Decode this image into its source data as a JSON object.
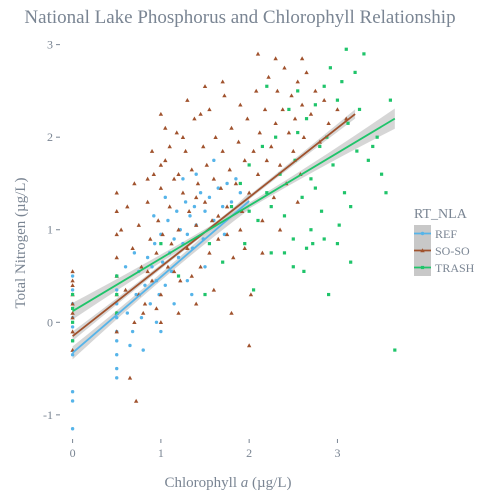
{
  "chart_data": {
    "type": "scatter",
    "title": "National Lake Phosphorus and Chlorophyll Relationship",
    "xlabel_parts": [
      "Chlorophyll ",
      "a",
      " (µg/L)"
    ],
    "ylabel": "Total Nitrogen (µg/L)",
    "xlim": [
      -0.12,
      3.72
    ],
    "ylim": [
      -1.25,
      3.05
    ],
    "x_ticks": [
      0,
      1,
      2,
      3
    ],
    "y_ticks": [
      -1,
      0,
      1,
      2,
      3
    ],
    "grid": false,
    "legend": {
      "title": "RT_NLA",
      "position": "right"
    },
    "colors": {
      "REF": "#56b4e9",
      "SO-SO": "#a0522d",
      "TRASH": "#1fc46a",
      "band": "#c8c8c8"
    },
    "series": [
      {
        "name": "REF",
        "marker": "circle",
        "fit": {
          "x_range": [
            0,
            2.0
          ],
          "intercept": -0.33,
          "slope": 0.82,
          "band": [
            0.07,
            0.04,
            0.09
          ]
        },
        "points": [
          [
            0,
            -1.15
          ],
          [
            0,
            -0.75
          ],
          [
            0,
            -0.85
          ],
          [
            0,
            -0.35
          ],
          [
            0,
            -0.2
          ],
          [
            0,
            0.05
          ],
          [
            0,
            -0.05
          ],
          [
            0,
            0.2
          ],
          [
            0,
            0.35
          ],
          [
            0,
            0.5
          ],
          [
            0.5,
            -0.6
          ],
          [
            0.5,
            -0.5
          ],
          [
            0.5,
            -0.35
          ],
          [
            0.5,
            -0.2
          ],
          [
            0.5,
            -0.1
          ],
          [
            0.5,
            0.05
          ],
          [
            0.5,
            0.2
          ],
          [
            0.5,
            0.35
          ],
          [
            0.5,
            0.5
          ],
          [
            0.62,
            0.1
          ],
          [
            0.68,
            -0.1
          ],
          [
            0.72,
            0.3
          ],
          [
            0.75,
            0.55
          ],
          [
            0.78,
            0.05
          ],
          [
            0.82,
            0.4
          ],
          [
            0.85,
            0.7
          ],
          [
            0.88,
            0.2
          ],
          [
            0.9,
            0.6
          ],
          [
            0.93,
            0.85
          ],
          [
            0.95,
            0.45
          ],
          [
            0.98,
            0.3
          ],
          [
            1.0,
            0.95
          ],
          [
            1.02,
            0.65
          ],
          [
            1.05,
            0.4
          ],
          [
            1.08,
            1.1
          ],
          [
            1.1,
            0.75
          ],
          [
            1.12,
            0.55
          ],
          [
            1.15,
            0.9
          ],
          [
            1.18,
            1.2
          ],
          [
            1.2,
            0.7
          ],
          [
            1.22,
            1.0
          ],
          [
            1.25,
            0.85
          ],
          [
            1.28,
            1.3
          ],
          [
            1.3,
            0.95
          ],
          [
            1.33,
            1.15
          ],
          [
            1.36,
            0.8
          ],
          [
            1.38,
            1.25
          ],
          [
            1.4,
            1.05
          ],
          [
            1.45,
            1.4
          ],
          [
            1.48,
            0.9
          ],
          [
            1.5,
            1.2
          ],
          [
            1.55,
            1.35
          ],
          [
            1.6,
            1.1
          ],
          [
            1.65,
            1.45
          ],
          [
            1.7,
            1.25
          ],
          [
            1.75,
            1.5
          ],
          [
            1.8,
            1.3
          ],
          [
            1.85,
            1.55
          ],
          [
            1.9,
            1.4
          ],
          [
            1.0,
            -0.1
          ],
          [
            0.8,
            -0.3
          ],
          [
            0.95,
            0.0
          ],
          [
            1.15,
            0.2
          ],
          [
            1.3,
            0.45
          ],
          [
            0.7,
            0.75
          ],
          [
            1.05,
            1.35
          ],
          [
            1.25,
            1.55
          ],
          [
            1.4,
            1.6
          ],
          [
            1.6,
            1.75
          ],
          [
            1.5,
            0.6
          ],
          [
            1.72,
            0.95
          ],
          [
            0.6,
            0.6
          ],
          [
            0.65,
            -0.25
          ],
          [
            0.92,
            1.15
          ],
          [
            1.35,
            0.3
          ]
        ]
      },
      {
        "name": "SO-SO",
        "marker": "triangle",
        "fit": {
          "x_range": [
            0,
            3.2
          ],
          "intercept": -0.15,
          "slope": 0.75,
          "band": [
            0.05,
            0.02,
            0.05
          ]
        },
        "points": [
          [
            0,
            -0.3
          ],
          [
            0,
            -0.1
          ],
          [
            0,
            0.05
          ],
          [
            0,
            0.2
          ],
          [
            0,
            0.3
          ],
          [
            0,
            0.45
          ],
          [
            0,
            0.55
          ],
          [
            0,
            0.4
          ],
          [
            0,
            0.1
          ],
          [
            0.5,
            -0.1
          ],
          [
            0.5,
            0.1
          ],
          [
            0.5,
            0.3
          ],
          [
            0.5,
            0.5
          ],
          [
            0.5,
            0.7
          ],
          [
            0.5,
            0.95
          ],
          [
            0.5,
            1.2
          ],
          [
            0.5,
            1.4
          ],
          [
            0.65,
            -0.6
          ],
          [
            0.72,
            -0.85
          ],
          [
            0.6,
            0.35
          ],
          [
            0.68,
            0.8
          ],
          [
            0.75,
            1.05
          ],
          [
            0.78,
            0.6
          ],
          [
            0.82,
            0.2
          ],
          [
            0.85,
            1.3
          ],
          [
            0.88,
            0.9
          ],
          [
            0.9,
            0.45
          ],
          [
            0.92,
            1.6
          ],
          [
            0.95,
            0.75
          ],
          [
            0.97,
            1.1
          ],
          [
            1.0,
            0.3
          ],
          [
            1.0,
            1.45
          ],
          [
            1.02,
            0.95
          ],
          [
            1.05,
            1.75
          ],
          [
            1.08,
            0.6
          ],
          [
            1.1,
            1.25
          ],
          [
            1.12,
            0.85
          ],
          [
            1.15,
            1.55
          ],
          [
            1.18,
            2.05
          ],
          [
            1.2,
            1.0
          ],
          [
            1.22,
            0.45
          ],
          [
            1.25,
            1.4
          ],
          [
            1.28,
            1.85
          ],
          [
            1.3,
            0.8
          ],
          [
            1.32,
            1.2
          ],
          [
            1.35,
            1.65
          ],
          [
            1.38,
            2.2
          ],
          [
            1.4,
            1.05
          ],
          [
            1.42,
            1.5
          ],
          [
            1.45,
            0.6
          ],
          [
            1.48,
            1.9
          ],
          [
            1.5,
            1.3
          ],
          [
            1.52,
            1.7
          ],
          [
            1.55,
            2.3
          ],
          [
            1.58,
            1.1
          ],
          [
            1.6,
            1.55
          ],
          [
            1.62,
            2.0
          ],
          [
            1.65,
            0.9
          ],
          [
            1.68,
            1.45
          ],
          [
            1.7,
            1.85
          ],
          [
            1.72,
            2.45
          ],
          [
            1.75,
            1.25
          ],
          [
            1.78,
            1.65
          ],
          [
            1.8,
            2.1
          ],
          [
            1.82,
            0.7
          ],
          [
            1.85,
            1.5
          ],
          [
            1.88,
            1.95
          ],
          [
            1.9,
            2.35
          ],
          [
            1.92,
            1.2
          ],
          [
            1.95,
            1.75
          ],
          [
            1.98,
            2.2
          ],
          [
            2.0,
            1.4
          ],
          [
            2.02,
            0.3
          ],
          [
            2.05,
            1.85
          ],
          [
            2.08,
            2.5
          ],
          [
            2.1,
            1.6
          ],
          [
            2.12,
            2.05
          ],
          [
            2.15,
            1.1
          ],
          [
            2.18,
            2.3
          ],
          [
            2.2,
            1.75
          ],
          [
            2.22,
            2.65
          ],
          [
            2.25,
            1.9
          ],
          [
            2.28,
            1.35
          ],
          [
            2.3,
            2.15
          ],
          [
            2.32,
            2.5
          ],
          [
            2.35,
            1.7
          ],
          [
            2.38,
            2.3
          ],
          [
            2.4,
            2.75
          ],
          [
            2.42,
            1.5
          ],
          [
            2.45,
            2.05
          ],
          [
            2.48,
            2.45
          ],
          [
            2.5,
            1.85
          ],
          [
            2.52,
            2.2
          ],
          [
            2.55,
            2.6
          ],
          [
            2.58,
            1.6
          ],
          [
            2.6,
            2.35
          ],
          [
            2.62,
            2.0
          ],
          [
            2.65,
            2.7
          ],
          [
            2.7,
            2.25
          ],
          [
            2.75,
            2.5
          ],
          [
            2.8,
            1.95
          ],
          [
            2.85,
            2.4
          ],
          [
            2.9,
            2.15
          ],
          [
            3.0,
            2.3
          ],
          [
            3.1,
            2.2
          ],
          [
            0.7,
            0.0
          ],
          [
            0.8,
            0.1
          ],
          [
            1.0,
            0.0
          ],
          [
            1.2,
            0.1
          ],
          [
            1.4,
            0.2
          ],
          [
            1.6,
            0.35
          ],
          [
            1.8,
            0.1
          ],
          [
            2.0,
            -0.25
          ],
          [
            1.1,
            1.9
          ],
          [
            0.9,
            1.85
          ],
          [
            1.3,
            2.4
          ],
          [
            1.5,
            2.55
          ],
          [
            1.25,
            2.0
          ],
          [
            1.05,
            2.1
          ],
          [
            1.45,
            2.25
          ],
          [
            1.7,
            2.6
          ],
          [
            0.55,
            1.0
          ],
          [
            0.62,
            1.25
          ],
          [
            0.75,
            0.3
          ],
          [
            0.85,
            0.55
          ],
          [
            0.95,
            0.15
          ],
          [
            1.15,
            0.55
          ],
          [
            1.35,
            0.5
          ],
          [
            1.55,
            0.75
          ],
          [
            1.75,
            0.95
          ],
          [
            1.95,
            0.8
          ],
          [
            2.15,
            0.75
          ],
          [
            2.35,
            1.0
          ],
          [
            2.55,
            1.3
          ],
          [
            2.1,
            2.9
          ],
          [
            2.6,
            2.85
          ],
          [
            1.0,
            2.25
          ],
          [
            1.9,
            1.0
          ],
          [
            1.65,
            1.15
          ],
          [
            1.4,
            1.35
          ],
          [
            1.2,
            1.6
          ],
          [
            1.0,
            1.7
          ],
          [
            0.85,
            1.55
          ],
          [
            0.7,
            1.5
          ],
          [
            2.3,
            2.85
          ]
        ]
      },
      {
        "name": "TRASH",
        "marker": "square",
        "fit": {
          "x_range": [
            0,
            3.65
          ],
          "intercept": 0.12,
          "slope": 0.57,
          "band": [
            0.09,
            0.03,
            0.11
          ]
        },
        "points": [
          [
            0,
            0.0
          ],
          [
            0,
            0.15
          ],
          [
            0,
            0.3
          ],
          [
            0,
            -0.2
          ],
          [
            0.5,
            0.3
          ],
          [
            0.5,
            0.5
          ],
          [
            0.5,
            0.1
          ],
          [
            1.0,
            0.85
          ],
          [
            1.2,
            0.5
          ],
          [
            1.5,
            0.3
          ],
          [
            1.55,
            0.85
          ],
          [
            1.7,
            0.65
          ],
          [
            1.8,
            1.25
          ],
          [
            1.9,
            1.5
          ],
          [
            2.0,
            1.7
          ],
          [
            2.05,
            0.35
          ],
          [
            2.1,
            1.1
          ],
          [
            2.15,
            1.9
          ],
          [
            2.2,
            1.4
          ],
          [
            2.25,
            0.75
          ],
          [
            2.3,
            2.0
          ],
          [
            2.35,
            1.6
          ],
          [
            2.4,
            1.15
          ],
          [
            2.45,
            2.3
          ],
          [
            2.5,
            0.9
          ],
          [
            2.52,
            1.75
          ],
          [
            2.55,
            2.5
          ],
          [
            2.6,
            1.35
          ],
          [
            2.62,
            0.55
          ],
          [
            2.65,
            2.2
          ],
          [
            2.7,
            1.55
          ],
          [
            2.72,
            0.85
          ],
          [
            2.75,
            2.35
          ],
          [
            2.8,
            1.9
          ],
          [
            2.82,
            1.2
          ],
          [
            2.85,
            2.55
          ],
          [
            2.88,
            2.0
          ],
          [
            2.9,
            0.3
          ],
          [
            2.92,
            2.75
          ],
          [
            2.95,
            1.7
          ],
          [
            3.0,
            2.4
          ],
          [
            3.02,
            1.05
          ],
          [
            3.05,
            2.6
          ],
          [
            3.08,
            1.4
          ],
          [
            3.1,
            2.95
          ],
          [
            3.12,
            2.15
          ],
          [
            3.15,
            0.65
          ],
          [
            3.2,
            2.7
          ],
          [
            3.22,
            1.85
          ],
          [
            3.25,
            2.3
          ],
          [
            3.3,
            2.9
          ],
          [
            3.35,
            1.75
          ],
          [
            3.4,
            1.9
          ],
          [
            3.45,
            2.0
          ],
          [
            3.5,
            1.6
          ],
          [
            3.55,
            1.4
          ],
          [
            3.6,
            2.4
          ],
          [
            3.65,
            -0.3
          ],
          [
            2.65,
            0.8
          ],
          [
            2.5,
            0.6
          ],
          [
            2.25,
            1.25
          ],
          [
            1.95,
            0.85
          ],
          [
            2.85,
            0.9
          ],
          [
            3.0,
            0.85
          ],
          [
            2.7,
            1.0
          ],
          [
            2.4,
            0.75
          ],
          [
            2.2,
            2.55
          ],
          [
            2.55,
            2.05
          ],
          [
            2.75,
            1.45
          ],
          [
            3.15,
            1.25
          ],
          [
            2.0,
            1.2
          ]
        ]
      }
    ]
  }
}
